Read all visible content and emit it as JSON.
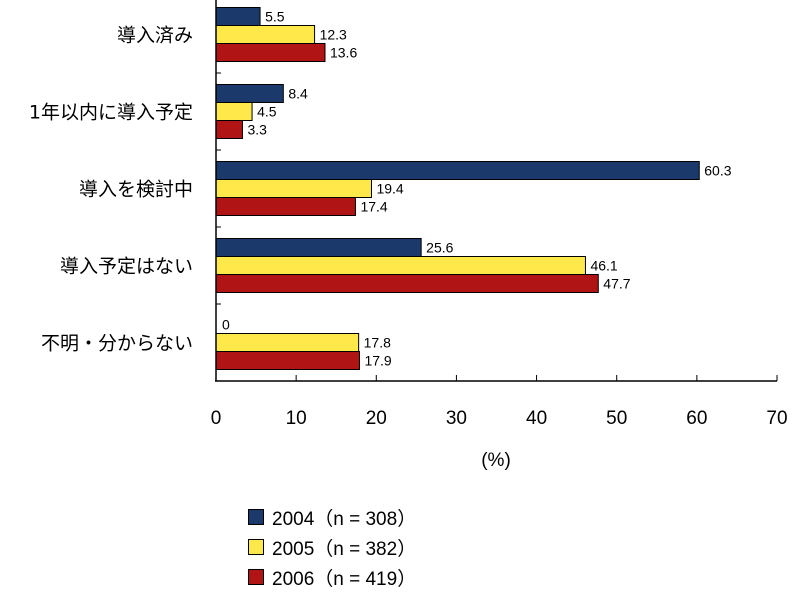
{
  "chart_data": {
    "type": "bar",
    "orientation": "horizontal",
    "categories": [
      "導入済み",
      "1年以内に導入予定",
      "導入を検討中",
      "導入予定はない",
      "不明・分からない"
    ],
    "series": [
      {
        "name": "2004（n = 308）",
        "color": "#1b3a6b",
        "values": [
          5.5,
          8.4,
          60.3,
          25.6,
          0
        ]
      },
      {
        "name": "2005（n = 382）",
        "color": "#ffe94a",
        "values": [
          12.3,
          4.5,
          19.4,
          46.1,
          17.8
        ]
      },
      {
        "name": "2006（n = 419）",
        "color": "#b01414",
        "values": [
          13.6,
          3.3,
          17.4,
          47.7,
          17.9
        ]
      }
    ],
    "value_labels": [
      [
        "5.5",
        "8.4",
        "60.3",
        "25.6",
        "0"
      ],
      [
        "12.3",
        "4.5",
        "19.4",
        "46.1",
        "17.8"
      ],
      [
        "13.6",
        "3.3",
        "17.4",
        "47.7",
        "17.9"
      ]
    ],
    "xlim": [
      0,
      70
    ],
    "xticks": [
      "0",
      "10",
      "20",
      "30",
      "40",
      "50",
      "60",
      "70"
    ],
    "xlabel": "(%)",
    "title": "",
    "legend_position": "bottom",
    "grid": false
  }
}
